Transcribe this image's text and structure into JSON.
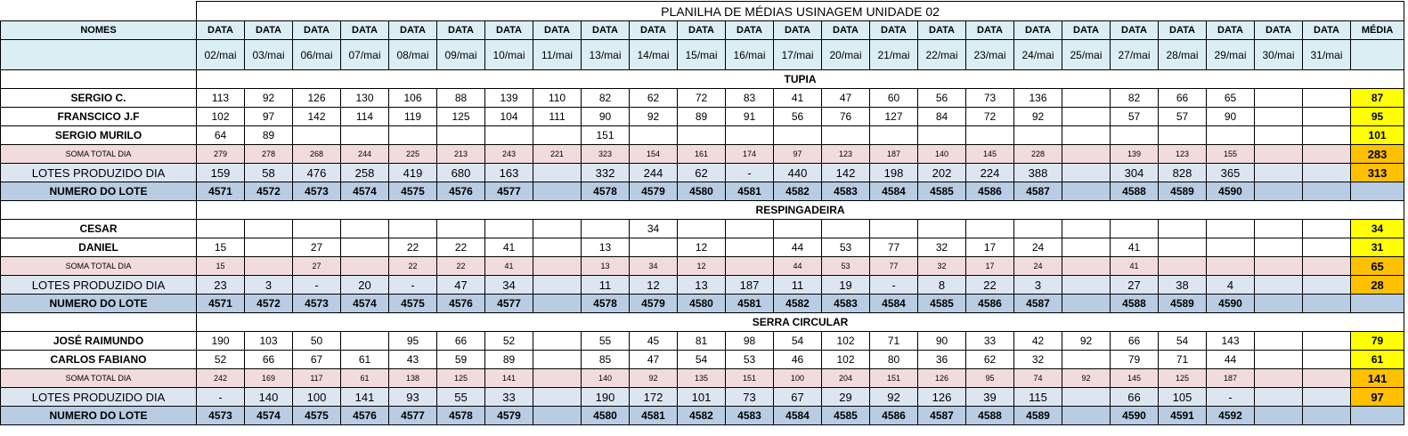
{
  "title": "PLANILHA DE MÉDIAS USINAGEM UNIDADE 02",
  "header": {
    "names_label": "NOMES",
    "data_label": "DATA",
    "media_label": "MÉDIA",
    "dates": [
      "02/mai",
      "03/mai",
      "06/mai",
      "07/mai",
      "08/mai",
      "09/mai",
      "10/mai",
      "11/mai",
      "13/mai",
      "14/mai",
      "15/mai",
      "16/mai",
      "17/mai",
      "20/mai",
      "21/mai",
      "22/mai",
      "23/mai",
      "24/mai",
      "25/mai",
      "27/mai",
      "28/mai",
      "29/mai",
      "30/mai",
      "31/mai"
    ]
  },
  "sections": [
    {
      "name": "TUPIA",
      "rows": [
        {
          "type": "person",
          "label": "SERGIO C.",
          "values": [
            "113",
            "92",
            "126",
            "130",
            "106",
            "88",
            "139",
            "110",
            "82",
            "62",
            "72",
            "83",
            "41",
            "47",
            "60",
            "56",
            "73",
            "136",
            "",
            "82",
            "66",
            "65",
            "",
            ""
          ],
          "media": "87"
        },
        {
          "type": "person",
          "label": "FRANSCICO J.F",
          "values": [
            "102",
            "97",
            "142",
            "114",
            "119",
            "125",
            "104",
            "111",
            "90",
            "92",
            "89",
            "91",
            "56",
            "76",
            "127",
            "84",
            "72",
            "92",
            "",
            "57",
            "57",
            "90",
            "",
            ""
          ],
          "media": "95"
        },
        {
          "type": "person",
          "label": "SERGIO MURILO",
          "values": [
            "64",
            "89",
            "",
            "",
            "",
            "",
            "",
            "",
            "151",
            "",
            "",
            "",
            "",
            "",
            "",
            "",
            "",
            "",
            "",
            "",
            "",
            "",
            "",
            ""
          ],
          "media": "101"
        },
        {
          "type": "soma",
          "label": "SOMA TOTAL DIA",
          "values": [
            "279",
            "278",
            "268",
            "244",
            "225",
            "213",
            "243",
            "221",
            "323",
            "154",
            "161",
            "174",
            "97",
            "123",
            "187",
            "140",
            "145",
            "228",
            "",
            "139",
            "123",
            "155",
            "",
            ""
          ],
          "media": "283"
        },
        {
          "type": "lotes",
          "label": "LOTES PRODUZIDO DIA",
          "values": [
            "159",
            "58",
            "476",
            "258",
            "419",
            "680",
            "163",
            "",
            "332",
            "244",
            "62",
            "-",
            "440",
            "142",
            "198",
            "202",
            "224",
            "388",
            "",
            "304",
            "828",
            "365",
            "",
            ""
          ],
          "media": "313"
        },
        {
          "type": "lote",
          "label": "NUMERO DO LOTE",
          "values": [
            "4571",
            "4572",
            "4573",
            "4574",
            "4575",
            "4576",
            "4577",
            "",
            "4578",
            "4579",
            "4580",
            "4581",
            "4582",
            "4583",
            "4584",
            "4585",
            "4586",
            "4587",
            "",
            "4588",
            "4589",
            "4590",
            "",
            ""
          ],
          "media": ""
        }
      ]
    },
    {
      "name": "RESPINGADEIRA",
      "rows": [
        {
          "type": "person",
          "label": "CESAR",
          "values": [
            "",
            "",
            "",
            "",
            "",
            "",
            "",
            "",
            "",
            "34",
            "",
            "",
            "",
            "",
            "",
            "",
            "",
            "",
            "",
            "",
            "",
            "",
            "",
            ""
          ],
          "media": "34"
        },
        {
          "type": "person",
          "label": "DANIEL",
          "values": [
            "15",
            "",
            "27",
            "",
            "22",
            "22",
            "41",
            "",
            "13",
            "",
            "12",
            "",
            "44",
            "53",
            "77",
            "32",
            "17",
            "24",
            "",
            "41",
            "",
            "",
            "",
            ""
          ],
          "media": "31"
        },
        {
          "type": "soma",
          "label": "SOMA TOTAL DIA",
          "values": [
            "15",
            "",
            "27",
            "",
            "22",
            "22",
            "41",
            "",
            "13",
            "34",
            "12",
            "",
            "44",
            "53",
            "77",
            "32",
            "17",
            "24",
            "",
            "41",
            "",
            "",
            "",
            ""
          ],
          "media": "65"
        },
        {
          "type": "lotes",
          "label": "LOTES PRODUZIDO DIA",
          "values": [
            "23",
            "3",
            "-",
            "20",
            "-",
            "47",
            "34",
            "",
            "11",
            "12",
            "13",
            "187",
            "11",
            "19",
            "-",
            "8",
            "22",
            "3",
            "",
            "27",
            "38",
            "4",
            "",
            ""
          ],
          "media": "28"
        },
        {
          "type": "lote",
          "label": "NUMERO DO LOTE",
          "values": [
            "4571",
            "4572",
            "4573",
            "4574",
            "4575",
            "4576",
            "4577",
            "",
            "4578",
            "4579",
            "4580",
            "4581",
            "4582",
            "4583",
            "4584",
            "4585",
            "4586",
            "4587",
            "",
            "4588",
            "4589",
            "4590",
            "",
            ""
          ],
          "media": ""
        }
      ]
    },
    {
      "name": "SERRA CIRCULAR",
      "rows": [
        {
          "type": "person",
          "label": "JOSÉ RAIMUNDO",
          "values": [
            "190",
            "103",
            "50",
            "",
            "95",
            "66",
            "52",
            "",
            "55",
            "45",
            "81",
            "98",
            "54",
            "102",
            "71",
            "90",
            "33",
            "42",
            "92",
            "66",
            "54",
            "143",
            "",
            ""
          ],
          "media": "79"
        },
        {
          "type": "person",
          "label": "CARLOS FABIANO",
          "values": [
            "52",
            "66",
            "67",
            "61",
            "43",
            "59",
            "89",
            "",
            "85",
            "47",
            "54",
            "53",
            "46",
            "102",
            "80",
            "36",
            "62",
            "32",
            "",
            "79",
            "71",
            "44",
            "",
            ""
          ],
          "media": "61"
        },
        {
          "type": "soma",
          "label": "SOMA TOTAL DIA",
          "values": [
            "242",
            "169",
            "117",
            "61",
            "138",
            "125",
            "141",
            "",
            "140",
            "92",
            "135",
            "151",
            "100",
            "204",
            "151",
            "126",
            "95",
            "74",
            "92",
            "145",
            "125",
            "187",
            "",
            ""
          ],
          "media": "141"
        },
        {
          "type": "lotes",
          "label": "LOTES PRODUZIDO DIA",
          "values": [
            "-",
            "140",
            "100",
            "141",
            "93",
            "55",
            "33",
            "",
            "190",
            "172",
            "101",
            "73",
            "67",
            "29",
            "92",
            "126",
            "39",
            "115",
            "",
            "66",
            "105",
            "-",
            "",
            ""
          ],
          "media": "97"
        },
        {
          "type": "lote",
          "label": "NUMERO DO LOTE",
          "values": [
            "4573",
            "4574",
            "4575",
            "4576",
            "4577",
            "4578",
            "4579",
            "",
            "4580",
            "4581",
            "4582",
            "4583",
            "4584",
            "4585",
            "4586",
            "4587",
            "4588",
            "4589",
            "",
            "4590",
            "4591",
            "4592",
            "",
            ""
          ],
          "media": ""
        }
      ]
    }
  ]
}
